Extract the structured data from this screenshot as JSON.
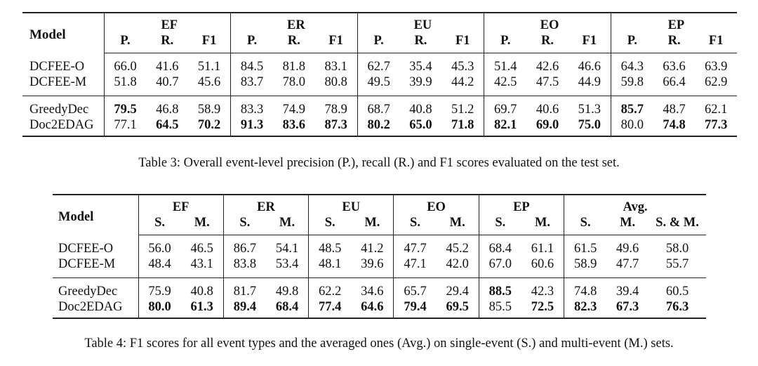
{
  "table3": {
    "model_header": "Model",
    "groups": [
      "EF",
      "ER",
      "EU",
      "EO",
      "EP"
    ],
    "sub_headers": [
      "P.",
      "R.",
      "F1"
    ],
    "rows": [
      {
        "name": "DCFEE-O",
        "cells": [
          "66.0",
          "41.6",
          "51.1",
          "84.5",
          "81.8",
          "83.1",
          "62.7",
          "35.4",
          "45.3",
          "51.4",
          "42.6",
          "46.6",
          "64.3",
          "63.6",
          "63.9"
        ],
        "bold": []
      },
      {
        "name": "DCFEE-M",
        "cells": [
          "51.8",
          "40.7",
          "45.6",
          "83.7",
          "78.0",
          "80.8",
          "49.5",
          "39.9",
          "44.2",
          "42.5",
          "47.5",
          "44.9",
          "59.8",
          "66.4",
          "62.9"
        ],
        "bold": []
      },
      {
        "name": "GreedyDec",
        "cells": [
          "79.5",
          "46.8",
          "58.9",
          "83.3",
          "74.9",
          "78.9",
          "68.7",
          "40.8",
          "51.2",
          "69.7",
          "40.6",
          "51.3",
          "85.7",
          "48.7",
          "62.1"
        ],
        "bold": [
          0,
          12
        ]
      },
      {
        "name": "Doc2EDAG",
        "cells": [
          "77.1",
          "64.5",
          "70.2",
          "91.3",
          "83.6",
          "87.3",
          "80.2",
          "65.0",
          "71.8",
          "82.1",
          "69.0",
          "75.0",
          "80.0",
          "74.8",
          "77.3"
        ],
        "bold": [
          1,
          2,
          3,
          4,
          5,
          6,
          7,
          8,
          9,
          10,
          11,
          13,
          14
        ]
      }
    ],
    "caption": "Table 3: Overall event-level precision (P.), recall (R.) and F1 scores evaluated on the test set."
  },
  "table4": {
    "model_header": "Model",
    "groups": [
      "EF",
      "ER",
      "EU",
      "EO",
      "EP"
    ],
    "avg_group": "Avg.",
    "sub_headers": [
      "S.",
      "M."
    ],
    "avg_sub_headers": [
      "S.",
      "M.",
      "S. & M."
    ],
    "rows": [
      {
        "name": "DCFEE-O",
        "cells": [
          "56.0",
          "46.5",
          "86.7",
          "54.1",
          "48.5",
          "41.2",
          "47.7",
          "45.2",
          "68.4",
          "61.1",
          "61.5",
          "49.6",
          "58.0"
        ],
        "bold": []
      },
      {
        "name": "DCFEE-M",
        "cells": [
          "48.4",
          "43.1",
          "83.8",
          "53.4",
          "48.1",
          "39.6",
          "47.1",
          "42.0",
          "67.0",
          "60.6",
          "58.9",
          "47.7",
          "55.7"
        ],
        "bold": []
      },
      {
        "name": "GreedyDec",
        "cells": [
          "75.9",
          "40.8",
          "81.7",
          "49.8",
          "62.2",
          "34.6",
          "65.7",
          "29.4",
          "88.5",
          "42.3",
          "74.8",
          "39.4",
          "60.5"
        ],
        "bold": [
          8
        ]
      },
      {
        "name": "Doc2EDAG",
        "cells": [
          "80.0",
          "61.3",
          "89.4",
          "68.4",
          "77.4",
          "64.6",
          "79.4",
          "69.5",
          "85.5",
          "72.5",
          "82.3",
          "67.3",
          "76.3"
        ],
        "bold": [
          0,
          1,
          2,
          3,
          4,
          5,
          6,
          7,
          9,
          10,
          11,
          12
        ]
      }
    ],
    "caption": "Table 4: F1 scores for all event types and the averaged ones (Avg.) on single-event (S.) and multi-event (M.) sets."
  }
}
